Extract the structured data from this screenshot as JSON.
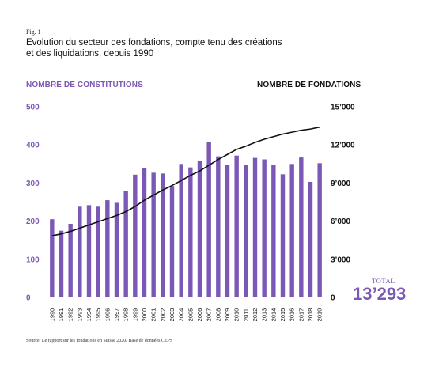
{
  "fig_label": "Fig. 1",
  "title_line1": "Evolution du secteur des fondations, compte tenu des créations",
  "title_line2": "et des liquidations, depuis 1990",
  "total": {
    "label": "TOTAL",
    "value": "13’293"
  },
  "source": "Source: Le rapport sur les fondations en Suisse 2020/ Base de données CEPS",
  "colors": {
    "bar": "#7b57b6",
    "line": "#111111",
    "left_axis": "#7b57b6",
    "right_axis": "#111111"
  },
  "chart_data": {
    "type": "bar",
    "categories": [
      "1990",
      "1991",
      "1992",
      "1993",
      "1994",
      "1995",
      "1996",
      "1997",
      "1998",
      "1999",
      "2000",
      "2001",
      "2002",
      "2003",
      "2004",
      "2005",
      "2006",
      "2007",
      "2008",
      "2009",
      "2010",
      "2011",
      "2012",
      "2013",
      "2014",
      "2015",
      "2016",
      "2017",
      "2018",
      "2019"
    ],
    "left_axis": {
      "title": "NOMBRE DE CONSTITUTIONS",
      "ylim": [
        0,
        500
      ],
      "ticks": [
        0,
        100,
        200,
        300,
        400,
        500
      ],
      "tick_labels": [
        "0",
        "100",
        "200",
        "300",
        "400",
        "500"
      ]
    },
    "right_axis": {
      "title": "NOMBRE DE FONDATIONS",
      "ylim": [
        0,
        15000
      ],
      "ticks": [
        0,
        3000,
        6000,
        9000,
        12000,
        15000
      ],
      "tick_labels": [
        "0",
        "3’000",
        "6’000",
        "9’000",
        "12’000",
        "15’000"
      ]
    },
    "series": [
      {
        "type": "bar",
        "axis": "left",
        "values": [
          205,
          175,
          193,
          238,
          242,
          238,
          255,
          248,
          280,
          322,
          340,
          327,
          325,
          292,
          350,
          341,
          358,
          408,
          370,
          347,
          372,
          347,
          366,
          362,
          348,
          323,
          350,
          367,
          303,
          352
        ]
      },
      {
        "type": "line",
        "axis": "right",
        "values": [
          4850,
          5000,
          5200,
          5450,
          5700,
          5950,
          6200,
          6450,
          6750,
          7150,
          7650,
          8050,
          8450,
          8800,
          9200,
          9600,
          9950,
          10400,
          10850,
          11250,
          11650,
          11900,
          12200,
          12450,
          12650,
          12850,
          13000,
          13150,
          13250,
          13400
        ]
      }
    ],
    "grid": false,
    "legend": "none"
  }
}
